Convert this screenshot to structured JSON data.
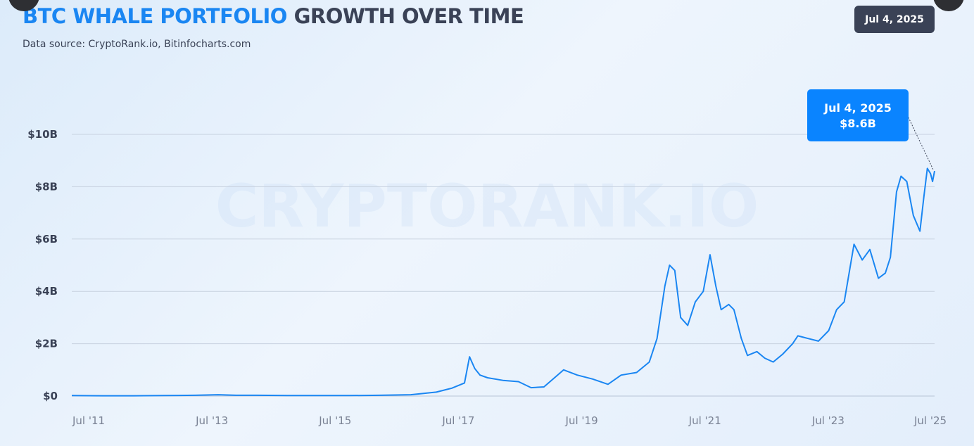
{
  "header": {
    "title_accent": "BTC WHALE PORTFOLIO",
    "title_rest": "GROWTH OVER TIME",
    "subtitle": "Data source: CryptoRank.io, Bitinfocharts.com",
    "date_badge": "Jul 4, 2025"
  },
  "watermark": "CRYPTORANK.IO",
  "nav": {
    "prev_icon": "chevron-left-icon",
    "next_icon": "chevron-right-icon"
  },
  "colors": {
    "line": "#1a86f2",
    "callout": "#0a84ff",
    "badge": "#3a4256",
    "title_accent": "#1a86f2"
  },
  "chart_data": {
    "type": "line",
    "title": "BTC WHALE PORTFOLIO GROWTH OVER TIME",
    "xlabel": "",
    "ylabel": "",
    "x_tick_labels": [
      "Jul '11",
      "Jul '13",
      "Jul '15",
      "Jul '17",
      "Jul '19",
      "Jul '21",
      "Jul '23",
      "Jul '25"
    ],
    "y_tick_labels": [
      "$0",
      "$2B",
      "$4B",
      "$6B",
      "$8B",
      "$10B"
    ],
    "y_ticks": [
      0,
      2,
      4,
      6,
      8,
      10
    ],
    "ylim": [
      0,
      10
    ],
    "xlim": [
      "2011-07-01",
      "2025-07-04"
    ],
    "grid": true,
    "annotation": {
      "date": "Jul 4, 2025",
      "value": "$8.6B"
    },
    "series": [
      {
        "values_unit": "USD billions",
        "points": [
          [
            "2011-07-01",
            0.02
          ],
          [
            "2012-01-01",
            0.01
          ],
          [
            "2012-07-01",
            0.01
          ],
          [
            "2013-01-01",
            0.02
          ],
          [
            "2013-07-01",
            0.03
          ],
          [
            "2013-11-15",
            0.05
          ],
          [
            "2014-03-01",
            0.03
          ],
          [
            "2014-07-01",
            0.03
          ],
          [
            "2015-01-01",
            0.02
          ],
          [
            "2015-07-01",
            0.02
          ],
          [
            "2016-01-01",
            0.02
          ],
          [
            "2016-07-01",
            0.03
          ],
          [
            "2017-01-01",
            0.05
          ],
          [
            "2017-06-01",
            0.15
          ],
          [
            "2017-09-01",
            0.3
          ],
          [
            "2017-11-15",
            0.5
          ],
          [
            "2017-12-15",
            1.5
          ],
          [
            "2018-01-15",
            1.05
          ],
          [
            "2018-02-15",
            0.8
          ],
          [
            "2018-04-01",
            0.7
          ],
          [
            "2018-07-01",
            0.6
          ],
          [
            "2018-10-01",
            0.55
          ],
          [
            "2018-12-15",
            0.32
          ],
          [
            "2019-03-01",
            0.35
          ],
          [
            "2019-06-26",
            1.0
          ],
          [
            "2019-09-15",
            0.8
          ],
          [
            "2019-12-15",
            0.65
          ],
          [
            "2020-03-15",
            0.45
          ],
          [
            "2020-06-01",
            0.8
          ],
          [
            "2020-09-01",
            0.9
          ],
          [
            "2020-11-15",
            1.3
          ],
          [
            "2020-12-31",
            2.2
          ],
          [
            "2021-02-15",
            4.2
          ],
          [
            "2021-03-15",
            5.0
          ],
          [
            "2021-04-15",
            4.8
          ],
          [
            "2021-05-20",
            3.0
          ],
          [
            "2021-07-01",
            2.7
          ],
          [
            "2021-08-15",
            3.6
          ],
          [
            "2021-10-01",
            4.0
          ],
          [
            "2021-11-10",
            5.4
          ],
          [
            "2021-12-15",
            4.2
          ],
          [
            "2022-01-15",
            3.3
          ],
          [
            "2022-03-01",
            3.5
          ],
          [
            "2022-04-01",
            3.3
          ],
          [
            "2022-05-15",
            2.2
          ],
          [
            "2022-06-20",
            1.55
          ],
          [
            "2022-08-15",
            1.7
          ],
          [
            "2022-10-01",
            1.45
          ],
          [
            "2022-11-20",
            1.3
          ],
          [
            "2023-01-15",
            1.6
          ],
          [
            "2023-03-15",
            2.0
          ],
          [
            "2023-04-15",
            2.3
          ],
          [
            "2023-06-15",
            2.2
          ],
          [
            "2023-08-15",
            2.1
          ],
          [
            "2023-10-15",
            2.5
          ],
          [
            "2023-12-01",
            3.3
          ],
          [
            "2024-01-15",
            3.6
          ],
          [
            "2024-03-13",
            5.8
          ],
          [
            "2024-05-01",
            5.2
          ],
          [
            "2024-06-15",
            5.6
          ],
          [
            "2024-08-05",
            4.5
          ],
          [
            "2024-09-15",
            4.7
          ],
          [
            "2024-10-15",
            5.3
          ],
          [
            "2024-11-20",
            7.8
          ],
          [
            "2024-12-17",
            8.4
          ],
          [
            "2025-01-20",
            8.2
          ],
          [
            "2025-02-28",
            6.9
          ],
          [
            "2025-04-08",
            6.3
          ],
          [
            "2025-05-01",
            7.6
          ],
          [
            "2025-05-22",
            8.7
          ],
          [
            "2025-06-10",
            8.5
          ],
          [
            "2025-06-22",
            8.2
          ],
          [
            "2025-07-04",
            8.6
          ]
        ]
      }
    ]
  }
}
